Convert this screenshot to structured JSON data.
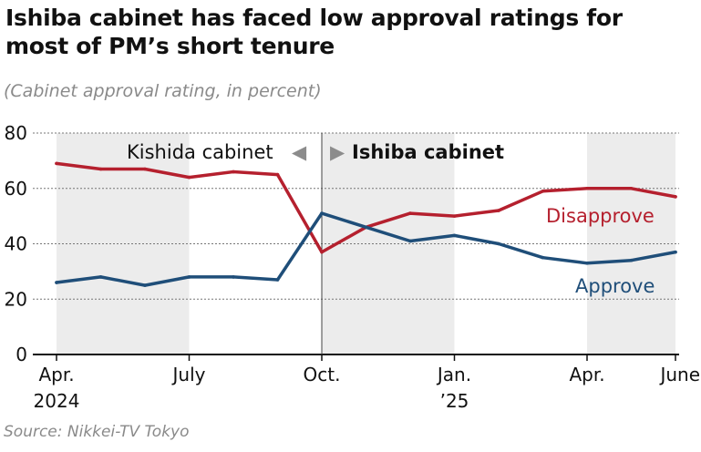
{
  "header": {
    "title_line1": "Ishiba cabinet has faced low approval ratings for",
    "title_line2": "most of PM’s short tenure",
    "subtitle": "(Cabinet approval rating, in percent)"
  },
  "footer": {
    "source": "Source: Nikkei-TV Tokyo"
  },
  "annotations": {
    "kishida": "Kishida cabinet",
    "ishiba": "Ishiba cabinet",
    "arrow_left": "◀",
    "arrow_right": "▶"
  },
  "colors": {
    "approve": "#1f4e79",
    "disapprove": "#b5202e",
    "shade": "#ececec",
    "axis": "#111111",
    "annotation_arrow": "#8c8c8c"
  },
  "chart_data": {
    "type": "line",
    "x_range": [
      0,
      14
    ],
    "ylim": [
      0,
      80
    ],
    "yticks": [
      0,
      20,
      40,
      60,
      80
    ],
    "xticks": [
      {
        "x": 0,
        "line1": "Apr.",
        "line2": "2024"
      },
      {
        "x": 3,
        "line1": "July",
        "line2": ""
      },
      {
        "x": 6,
        "line1": "Oct.",
        "line2": ""
      },
      {
        "x": 9,
        "line1": "Jan.",
        "line2": "’25"
      },
      {
        "x": 12,
        "line1": "Apr.",
        "line2": ""
      },
      {
        "x": 14,
        "line1": "June",
        "line2": ""
      }
    ],
    "shaded_ranges": [
      [
        0,
        3
      ],
      [
        6,
        9
      ],
      [
        12,
        14
      ]
    ],
    "divider_x": 6,
    "series": [
      {
        "name": "Disapprove",
        "color": "#b5202e",
        "x": [
          0,
          1,
          2,
          3,
          4,
          5,
          6,
          7,
          8,
          9,
          10,
          11,
          12,
          13,
          14
        ],
        "values": [
          69,
          67,
          67,
          64,
          66,
          65,
          37,
          46,
          51,
          50,
          52,
          59,
          60,
          60,
          57
        ]
      },
      {
        "name": "Approve",
        "color": "#1f4e79",
        "x": [
          0,
          1,
          2,
          3,
          4,
          5,
          6,
          7,
          8,
          9,
          10,
          11,
          12,
          13,
          14
        ],
        "values": [
          26,
          28,
          25,
          28,
          28,
          27,
          51,
          46,
          41,
          43,
          40,
          35,
          33,
          34,
          37
        ]
      }
    ]
  }
}
